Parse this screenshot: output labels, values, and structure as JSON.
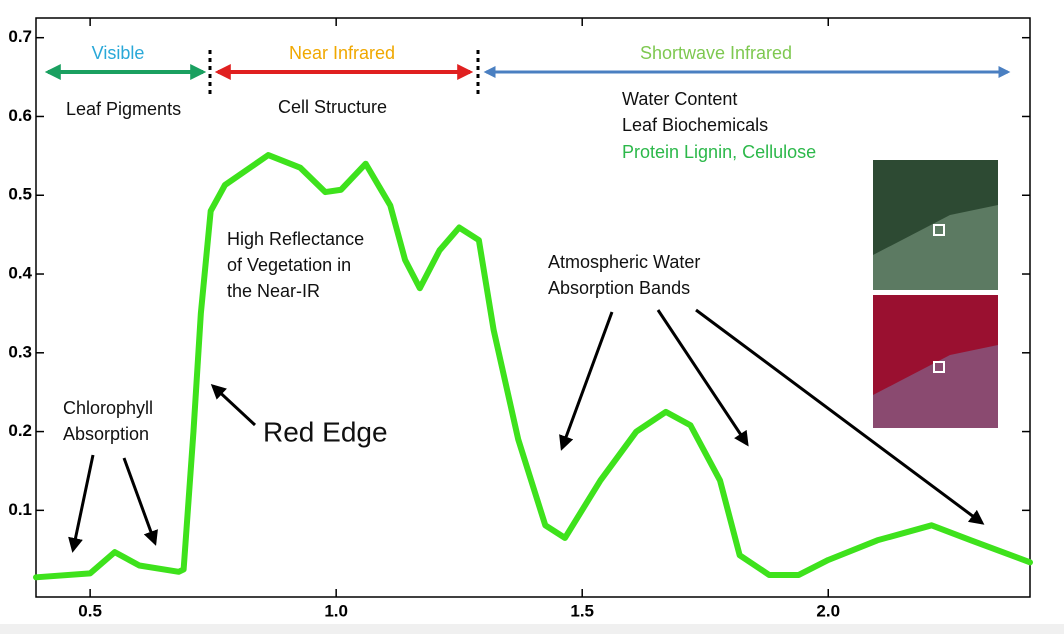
{
  "chart_data": {
    "type": "line",
    "xlim": [
      0.39,
      2.41
    ],
    "ylim": [
      -0.01,
      0.725
    ],
    "xticks": [
      0.5,
      {
        "value": 1,
        "label": "1.0"
      },
      1.5,
      {
        "value": 2,
        "label": "2.0"
      }
    ],
    "yticks": [
      0.1,
      0.2,
      0.3,
      0.4,
      0.5,
      0.6,
      0.7
    ],
    "x": [
      0.39,
      0.5,
      0.55,
      0.6,
      0.68,
      0.69,
      0.71,
      0.725,
      0.745,
      0.774,
      0.862,
      0.927,
      0.978,
      1.01,
      1.06,
      1.11,
      1.14,
      1.17,
      1.21,
      1.25,
      1.29,
      1.32,
      1.37,
      1.425,
      1.465,
      1.537,
      1.61,
      1.67,
      1.72,
      1.78,
      1.82,
      1.88,
      1.94,
      2.0,
      2.1,
      2.21,
      2.29,
      2.41
    ],
    "series": [
      {
        "color": "#3ee21c",
        "values": [
          0.015,
          0.02,
          0.047,
          0.03,
          0.022,
          0.025,
          0.2,
          0.35,
          0.48,
          0.513,
          0.551,
          0.535,
          0.504,
          0.507,
          0.54,
          0.487,
          0.418,
          0.382,
          0.43,
          0.459,
          0.443,
          0.329,
          0.19,
          0.081,
          0.065,
          0.138,
          0.2,
          0.225,
          0.208,
          0.138,
          0.043,
          0.018,
          0.018,
          0.037,
          0.062,
          0.081,
          0.062,
          0.034
        ]
      }
    ],
    "annotations": [
      "Visible",
      "Near Infrared",
      "Shortwave Infrared",
      "Leaf Pigments",
      "Cell Structure",
      "Water Content",
      "Leaf Biochemicals",
      "Protein Lignin, Cellulose",
      "High Reflectance",
      "of Vegetation in",
      "the Near-IR",
      "Atmospheric Water",
      "Absorption Bands",
      "Chlorophyll",
      "Absorption",
      "Red Edge"
    ]
  }
}
